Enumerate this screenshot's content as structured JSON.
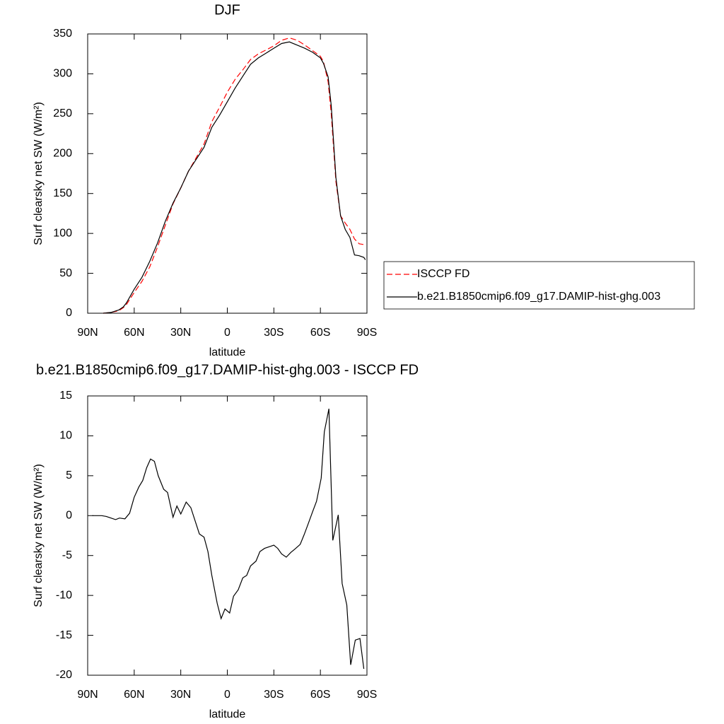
{
  "chart_data": [
    {
      "type": "line",
      "title": "DJF",
      "x_label": "latitude",
      "y_label": "Surf clearsky net SW (W/m²)",
      "x": [
        80,
        75,
        70,
        67,
        65,
        60,
        55,
        50,
        45,
        40,
        35,
        30,
        25,
        20,
        15,
        10,
        5,
        0,
        -5,
        -10,
        -15,
        -20,
        -25,
        -30,
        -35,
        -40,
        -45,
        -50,
        -55,
        -60,
        -62,
        -65,
        -67,
        -70,
        -73,
        -76,
        -79,
        -82,
        -85,
        -88,
        -89
      ],
      "series": [
        {
          "name": "ISCCP FD",
          "color": "#ff0000",
          "line_style": "dashed",
          "values": [
            0,
            1,
            3,
            7,
            11,
            26,
            40,
            58,
            83,
            110,
            137,
            157,
            178,
            195,
            212,
            240,
            258,
            277,
            293,
            305,
            318,
            325,
            330,
            335,
            342,
            345,
            342,
            336,
            329,
            322,
            315,
            290,
            250,
            165,
            122,
            113,
            105,
            93,
            87,
            86,
            86
          ]
        },
        {
          "name": "b.e21.B1850cmip6.f09_g17.DAMIP-hist-ghg.003",
          "color": "#000000",
          "line_style": "solid",
          "values": [
            0,
            1,
            4,
            8,
            13,
            30,
            45,
            65,
            88,
            115,
            138,
            157,
            178,
            193,
            208,
            233,
            248,
            265,
            282,
            297,
            312,
            320,
            326,
            332,
            338,
            340,
            336,
            332,
            327,
            320,
            313,
            296,
            260,
            170,
            122,
            105,
            95,
            73,
            72,
            70,
            67
          ]
        }
      ],
      "xlim": [
        90,
        -90
      ],
      "xticks": [
        {
          "value": 90,
          "label": "90N"
        },
        {
          "value": 60,
          "label": "60N"
        },
        {
          "value": 30,
          "label": "30N"
        },
        0,
        {
          "value": -30,
          "label": "30S"
        },
        {
          "value": -60,
          "label": "60S"
        },
        {
          "value": -90,
          "label": "90S"
        }
      ],
      "ylim": [
        0,
        350
      ],
      "yticks": [
        0,
        50,
        100,
        150,
        200,
        250,
        300,
        350
      ],
      "legend": "right"
    },
    {
      "type": "line",
      "title": "b.e21.B1850cmip6.f09_g17.DAMIP-hist-ghg.003 - ISCCP FD",
      "x_label": "latitude",
      "y_label": "Surf clearsky net SW (W/m²)",
      "x": [
        87,
        81,
        78,
        75,
        72,
        69.5,
        66,
        63,
        60,
        57,
        54.5,
        52,
        49.5,
        47,
        44.5,
        41,
        38.5,
        35,
        32.5,
        30,
        26.5,
        23.5,
        20.5,
        18,
        15,
        12.5,
        10,
        6.5,
        4,
        1.5,
        -1.5,
        -4,
        -7,
        -10,
        -12.5,
        -15,
        -18.5,
        -21,
        -24,
        -30,
        -32.5,
        -35,
        -38,
        -41,
        -43.5,
        -47,
        -49.5,
        -52,
        -55,
        -57.5,
        -60.5,
        -62.5,
        -65.5,
        -68,
        -71.5,
        -74,
        -77,
        -79.5,
        -82.5,
        -85.5,
        -88
      ],
      "values": [
        0,
        0,
        -0.1,
        -0.3,
        -0.5,
        -0.3,
        -0.4,
        0.3,
        2.3,
        3.6,
        4.4,
        6,
        7.1,
        6.8,
        5,
        3.3,
        2.9,
        -0.2,
        1.2,
        0.2,
        1.7,
        1,
        -0.8,
        -2.3,
        -2.7,
        -4.5,
        -7.5,
        -11,
        -12.9,
        -11.7,
        -12.2,
        -10.1,
        -9.3,
        -7.8,
        -7.5,
        -6.3,
        -5.7,
        -4.5,
        -4.1,
        -3.7,
        -4.1,
        -4.8,
        -5.2,
        -4.6,
        -4.2,
        -3.6,
        -2.4,
        -1.1,
        0.5,
        1.8,
        4.7,
        10.5,
        13.4,
        -3.1,
        0.1,
        -8.5,
        -11.2,
        -18.7,
        -15.6,
        -15.4,
        -19.2
      ],
      "color": "#000000",
      "xlim": [
        90,
        -90
      ],
      "xticks": [
        {
          "value": 90,
          "label": "90N"
        },
        {
          "value": 60,
          "label": "60N"
        },
        {
          "value": 30,
          "label": "30N"
        },
        0,
        {
          "value": -30,
          "label": "30S"
        },
        {
          "value": -60,
          "label": "60S"
        },
        {
          "value": -90,
          "label": "90S"
        }
      ],
      "ylim": [
        -20,
        15
      ],
      "yticks": [
        -20,
        -15,
        -10,
        -5,
        0,
        5,
        10,
        15
      ]
    }
  ]
}
